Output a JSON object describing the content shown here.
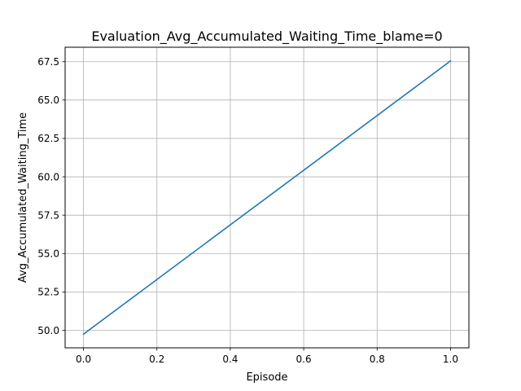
{
  "chart_data": {
    "type": "line",
    "title": "Evaluation_Avg_Accumulated_Waiting_Time_blame=0",
    "xlabel": "Episode",
    "ylabel": "Avg_Accumulated_Waiting_Time",
    "x": [
      0.0,
      1.0
    ],
    "series": [
      {
        "values": [
          49.75,
          67.55
        ],
        "color": "#1f77b4"
      }
    ],
    "xlim": [
      -0.05,
      1.05
    ],
    "ylim": [
      48.86,
      68.44
    ],
    "xticks": [
      {
        "value": 0.0,
        "label": "0.0"
      },
      {
        "value": 0.2,
        "label": "0.2"
      },
      {
        "value": 0.4,
        "label": "0.4"
      },
      {
        "value": 0.6,
        "label": "0.6"
      },
      {
        "value": 0.8,
        "label": "0.8"
      },
      {
        "value": 1.0,
        "label": "1.0"
      }
    ],
    "yticks": [
      {
        "value": 50.0,
        "label": "50.0"
      },
      {
        "value": 52.5,
        "label": "52.5"
      },
      {
        "value": 55.0,
        "label": "55.0"
      },
      {
        "value": 57.5,
        "label": "57.5"
      },
      {
        "value": 60.0,
        "label": "60.0"
      },
      {
        "value": 62.5,
        "label": "62.5"
      },
      {
        "value": 65.0,
        "label": "65.0"
      },
      {
        "value": 67.5,
        "label": "67.5"
      }
    ],
    "grid": true,
    "grid_color": "#b0b0b0",
    "legend": false
  }
}
